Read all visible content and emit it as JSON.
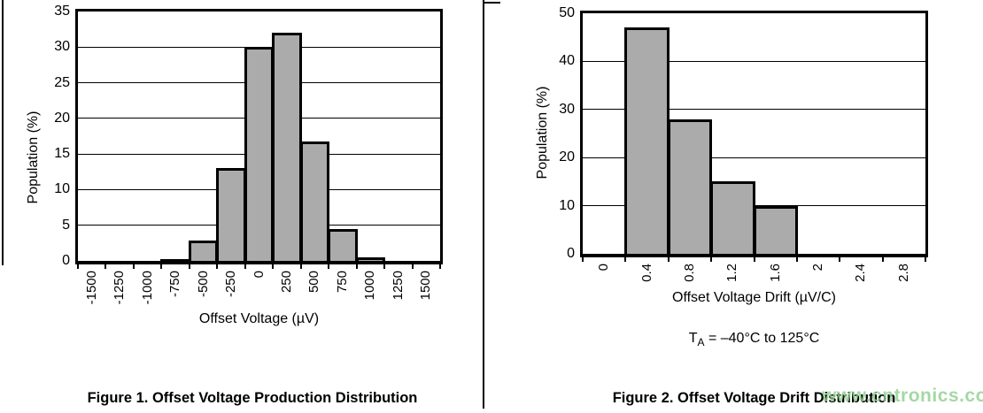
{
  "page": {
    "background": "#ffffff",
    "border_color": "#000000"
  },
  "watermark": {
    "text": "www.cntronics.com",
    "color": "#8ecf8e"
  },
  "figure1": {
    "caption": "Figure 1. Offset Voltage Production Distribution"
  },
  "figure2": {
    "caption": "Figure 2. Offset Voltage Drift Distribution",
    "condition": {
      "t": "T",
      "sub": "A",
      "rest": " = –40°C to 125°C"
    }
  },
  "chart_data": [
    {
      "type": "bar",
      "title": "Figure 1. Offset Voltage Production Distribution",
      "categories": [
        "-1500",
        "-1250",
        "-1000",
        "-750",
        "-500",
        "-250",
        "0",
        "250",
        "500",
        "750",
        "1000",
        "1250",
        "1500"
      ],
      "values": [
        0,
        0,
        0,
        0.2,
        2.8,
        13,
        30,
        32,
        16.8,
        4.5,
        0.5,
        0,
        0
      ],
      "xlabel": "Offset Voltage (µV)",
      "ylabel": "Population (%)",
      "ylim": [
        0,
        35
      ],
      "yticks": [
        0,
        5,
        10,
        15,
        20,
        25,
        30,
        35
      ],
      "grid": true,
      "legend": false,
      "bar_color": "#ababab",
      "bar_border": "#000000"
    },
    {
      "type": "bar",
      "title": "Figure 2. Offset Voltage Drift Distribution",
      "categories": [
        "0",
        "0.4",
        "0.8",
        "1.2",
        "1.6",
        "2",
        "2.4",
        "2.8"
      ],
      "values": [
        0,
        47,
        28,
        15,
        10,
        0,
        0,
        0
      ],
      "xlabel": "Offset Voltage Drift (µV/C)",
      "ylabel": "Population (%)",
      "ylim": [
        0,
        50
      ],
      "yticks": [
        0,
        10,
        20,
        30,
        40,
        50
      ],
      "grid": true,
      "legend": false,
      "annotation": "TA = –40°C to 125°C",
      "bar_color": "#ababab",
      "bar_border": "#000000"
    }
  ]
}
